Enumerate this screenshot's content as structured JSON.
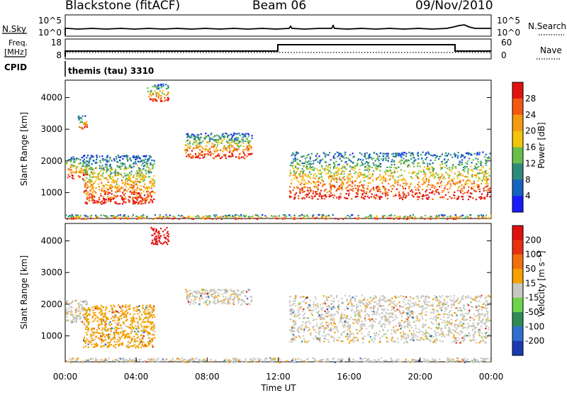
{
  "header": {
    "station": "Blackstone (fitACF)",
    "beam": "Beam 06",
    "date": "09/Nov/2010"
  },
  "top_panels": {
    "nsky_label": "N.Sky",
    "nsearch_label": "N.Search",
    "nsky_ticks": [
      "10^5",
      "10^0"
    ],
    "freq_label_line1": "Freq.",
    "freq_label_line2": "[MHz]",
    "freq_ticks": [
      "18",
      "8"
    ],
    "nave_label": "Nave",
    "nave_ticks": [
      "60",
      "0"
    ],
    "cpid_label": "CPID",
    "cpid_text": "themis (tau) 3310"
  },
  "chart_data": [
    {
      "type": "heatmap",
      "name": "power",
      "ylabel": "Slant Range [km]",
      "xlabel": "",
      "xlim": [
        "00:00",
        "24:00"
      ],
      "ylim": [
        180,
        4550
      ],
      "yticks": [
        1000,
        2000,
        3000,
        4000
      ],
      "colorbar_label": "Power [dB]",
      "colorbar_ticks": [
        "4",
        "8",
        "12",
        "16",
        "20",
        "24",
        "28"
      ],
      "colorbar_colors": [
        "#1a1aff",
        "#1565c0",
        "#2e8b7a",
        "#6abf4b",
        "#f2c40c",
        "#f39a12",
        "#f35a10",
        "#e31010"
      ],
      "regions": [
        {
          "t": [
            0.0,
            1.2
          ],
          "r": [
            1450,
            2150
          ]
        },
        {
          "t": [
            0.7,
            1.2
          ],
          "r": [
            3000,
            3450
          ]
        },
        {
          "t": [
            1.0,
            5.0
          ],
          "r": [
            650,
            2200
          ]
        },
        {
          "t": [
            4.6,
            5.8
          ],
          "r": [
            3900,
            4450
          ]
        },
        {
          "t": [
            6.7,
            10.5
          ],
          "r": [
            2100,
            2900
          ]
        },
        {
          "t": [
            12.6,
            23.9
          ],
          "r": [
            800,
            2300
          ]
        },
        {
          "t": [
            0.0,
            24.0
          ],
          "r": [
            180,
            320
          ]
        }
      ]
    },
    {
      "type": "heatmap",
      "name": "velocity",
      "ylabel": "Slant Range [km]",
      "xlabel": "Time UT",
      "xlim": [
        "00:00",
        "24:00"
      ],
      "ylim": [
        180,
        4550
      ],
      "yticks": [
        1000,
        2000,
        3000,
        4000
      ],
      "xticks": [
        "00:00",
        "04:00",
        "08:00",
        "12:00",
        "16:00",
        "20:00",
        "00:00"
      ],
      "colorbar_label": "Velocity [m s⁻¹]",
      "colorbar_ticks": [
        "200",
        "100",
        "50",
        "15",
        "-15",
        "-50",
        "-100",
        "-200"
      ],
      "colorbar_colors": [
        "#1a3ab0",
        "#2e6fd0",
        "#2e8b57",
        "#6cd44a",
        "#c8c8c0",
        "#f5a000",
        "#f07010",
        "#e83010",
        "#e01010"
      ],
      "regions": [
        {
          "t": [
            0.0,
            1.2
          ],
          "r": [
            1450,
            2150
          ]
        },
        {
          "t": [
            1.0,
            5.0
          ],
          "r": [
            650,
            2000
          ]
        },
        {
          "t": [
            4.8,
            5.8
          ],
          "r": [
            3900,
            4450
          ]
        },
        {
          "t": [
            6.7,
            10.5
          ],
          "r": [
            2000,
            2500
          ]
        },
        {
          "t": [
            12.6,
            23.9
          ],
          "r": [
            800,
            2300
          ]
        },
        {
          "t": [
            0.0,
            24.0
          ],
          "r": [
            180,
            320
          ]
        }
      ]
    }
  ]
}
